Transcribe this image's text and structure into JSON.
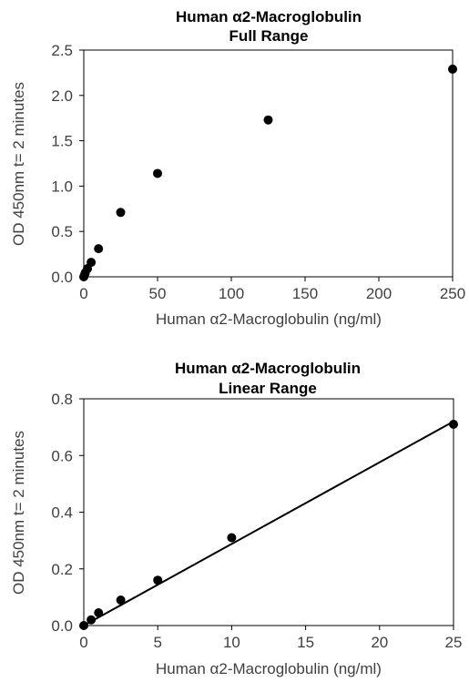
{
  "chart_data": [
    {
      "type": "scatter",
      "title_lines": [
        "Human α2-Macroglobulin",
        "Full Range"
      ],
      "xlabel": "Human  α2-Macroglobulin  (ng/ml)",
      "ylabel": "OD 450nm t= 2 minutes",
      "xlim": [
        0,
        250
      ],
      "ylim": [
        0,
        2.5
      ],
      "x_ticks": [
        "0",
        "50",
        "100",
        "150",
        "200",
        "250"
      ],
      "y_ticks": [
        "0.0",
        "0.5",
        "1.0",
        "1.5",
        "2.0",
        "2.5"
      ],
      "grid": false,
      "series": [
        {
          "x": [
            0,
            0.5,
            1,
            2.5,
            5,
            10,
            25,
            50,
            125,
            250
          ],
          "y": [
            0.0,
            0.02,
            0.045,
            0.09,
            0.16,
            0.31,
            0.71,
            1.14,
            1.73,
            2.29
          ]
        }
      ]
    },
    {
      "type": "scatter",
      "title_lines": [
        "Human α2-Macroglobulin",
        "Linear Range"
      ],
      "xlabel": "Human  α2-Macroglobulin  (ng/ml)",
      "ylabel": "OD 450nm t= 2 minutes",
      "xlim": [
        0,
        25
      ],
      "ylim": [
        0,
        0.8
      ],
      "x_ticks": [
        "0",
        "5",
        "10",
        "15",
        "20",
        "25"
      ],
      "y_ticks": [
        "0.0",
        "0.2",
        "0.4",
        "0.6",
        "0.8"
      ],
      "grid": false,
      "trendline": {
        "type": "linear",
        "x": [
          0,
          25
        ],
        "y": [
          0.0,
          0.72
        ]
      },
      "series": [
        {
          "x": [
            0,
            0.5,
            1,
            2.5,
            5,
            10,
            25
          ],
          "y": [
            0.0,
            0.02,
            0.045,
            0.09,
            0.16,
            0.31,
            0.71
          ]
        }
      ]
    }
  ]
}
